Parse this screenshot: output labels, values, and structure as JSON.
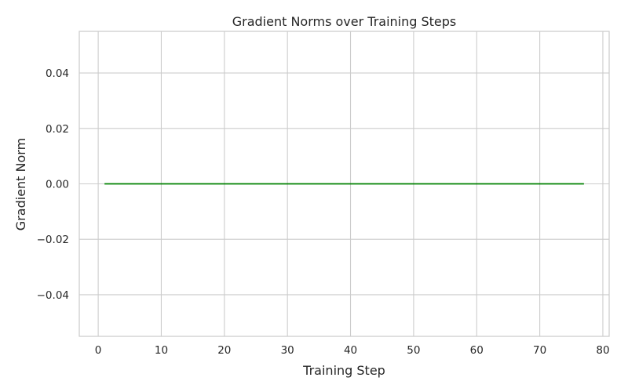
{
  "chart_data": {
    "type": "line",
    "title": "Gradient Norms over Training Steps",
    "xlabel": "Training Step",
    "ylabel": "Gradient Norm",
    "xlim": [
      -3,
      81
    ],
    "ylim": [
      -0.055,
      0.055
    ],
    "x_ticks": [
      0,
      10,
      20,
      30,
      40,
      50,
      60,
      70,
      80
    ],
    "x_tick_labels": [
      "0",
      "10",
      "20",
      "30",
      "40",
      "50",
      "60",
      "70",
      "80"
    ],
    "y_ticks": [
      -0.04,
      -0.02,
      0.0,
      0.02,
      0.04
    ],
    "y_tick_labels": [
      "−0.04",
      "−0.02",
      "0.00",
      "0.02",
      "0.04"
    ],
    "grid": true,
    "legend": "none",
    "series": [
      {
        "color": "#008000",
        "x": [
          1,
          77
        ],
        "y": [
          0.0,
          0.0
        ]
      }
    ]
  },
  "colors": {
    "background": "#ffffff",
    "grid": "#cccccc",
    "spine": "#cccccc",
    "text": "#262626",
    "line": "#008000"
  }
}
